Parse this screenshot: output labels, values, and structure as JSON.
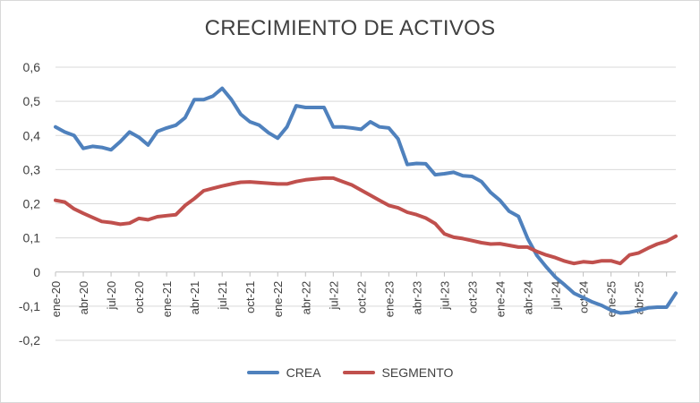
{
  "chart_data": {
    "type": "line",
    "title": "CRECIMIENTO DE ACTIVOS",
    "xlabel": "",
    "ylabel": "",
    "ylim": [
      -0.2,
      0.6
    ],
    "yticks": [
      -0.2,
      -0.1,
      0,
      0.1,
      0.2,
      0.3,
      0.4,
      0.5,
      0.6
    ],
    "ytick_labels": [
      "-0,2",
      "-0,1",
      "0",
      "0,1",
      "0,2",
      "0,3",
      "0,4",
      "0,5",
      "0,6"
    ],
    "x_tick_labels": [
      "ene-20",
      "abr-20",
      "jul-20",
      "oct-20",
      "ene-21",
      "abr-21",
      "jul-21",
      "oct-21",
      "ene-22",
      "abr-22",
      "jul-22",
      "oct-22",
      "ene-23",
      "abr-23",
      "jul-23",
      "oct-23",
      "ene-24",
      "abr-24",
      "jul-24",
      "oct-24",
      "ene-25",
      "abr-25"
    ],
    "grid": "horizontal",
    "legend_position": "bottom",
    "series": [
      {
        "name": "CREA",
        "color": "#4f81bd",
        "values": [
          0.425,
          0.41,
          0.4,
          0.362,
          0.368,
          0.365,
          0.358,
          0.382,
          0.41,
          0.395,
          0.372,
          0.412,
          0.422,
          0.43,
          0.452,
          0.505,
          0.505,
          0.515,
          0.538,
          0.505,
          0.462,
          0.44,
          0.43,
          0.408,
          0.392,
          0.425,
          0.487,
          0.482,
          0.482,
          0.482,
          0.425,
          0.425,
          0.422,
          0.418,
          0.44,
          0.425,
          0.422,
          0.39,
          0.315,
          0.318,
          0.317,
          0.285,
          0.288,
          0.292,
          0.282,
          0.28,
          0.265,
          0.233,
          0.21,
          0.178,
          0.163,
          0.098,
          0.048,
          0.015,
          -0.015,
          -0.038,
          -0.062,
          -0.075,
          -0.088,
          -0.098,
          -0.112,
          -0.12,
          -0.118,
          -0.112,
          -0.105,
          -0.103,
          -0.103,
          -0.062
        ]
      },
      {
        "name": "SEGMENTO",
        "color": "#c0504d",
        "values": [
          0.21,
          0.205,
          0.185,
          0.172,
          0.16,
          0.148,
          0.145,
          0.14,
          0.143,
          0.157,
          0.153,
          0.162,
          0.165,
          0.168,
          0.195,
          0.215,
          0.238,
          0.245,
          0.252,
          0.258,
          0.263,
          0.264,
          0.262,
          0.26,
          0.258,
          0.258,
          0.265,
          0.27,
          0.273,
          0.275,
          0.275,
          0.265,
          0.255,
          0.24,
          0.225,
          0.21,
          0.195,
          0.188,
          0.175,
          0.168,
          0.158,
          0.142,
          0.112,
          0.102,
          0.098,
          0.092,
          0.086,
          0.082,
          0.083,
          0.078,
          0.073,
          0.073,
          0.06,
          0.05,
          0.042,
          0.032,
          0.025,
          0.03,
          0.028,
          0.033,
          0.033,
          0.025,
          0.05,
          0.056,
          0.07,
          0.082,
          0.09,
          0.105
        ]
      }
    ]
  }
}
